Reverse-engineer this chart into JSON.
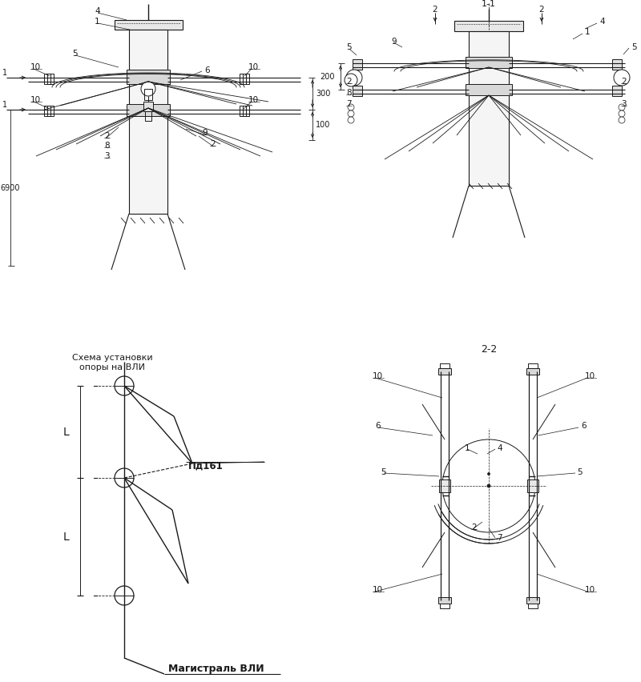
{
  "bg_color": "#ffffff",
  "lc": "#1a1a1a",
  "fig_w": 8.0,
  "fig_h": 8.52,
  "labels": {
    "sec11": "1-1",
    "sec22": "2-2",
    "schema": "Схема установки\nопоры на ВЛИ",
    "pd161": "Пд161",
    "magistral": "Магистраль ВЛИ"
  },
  "dims": {
    "d300": "300",
    "d100": "100",
    "d6900": "6900",
    "d200": "200"
  }
}
